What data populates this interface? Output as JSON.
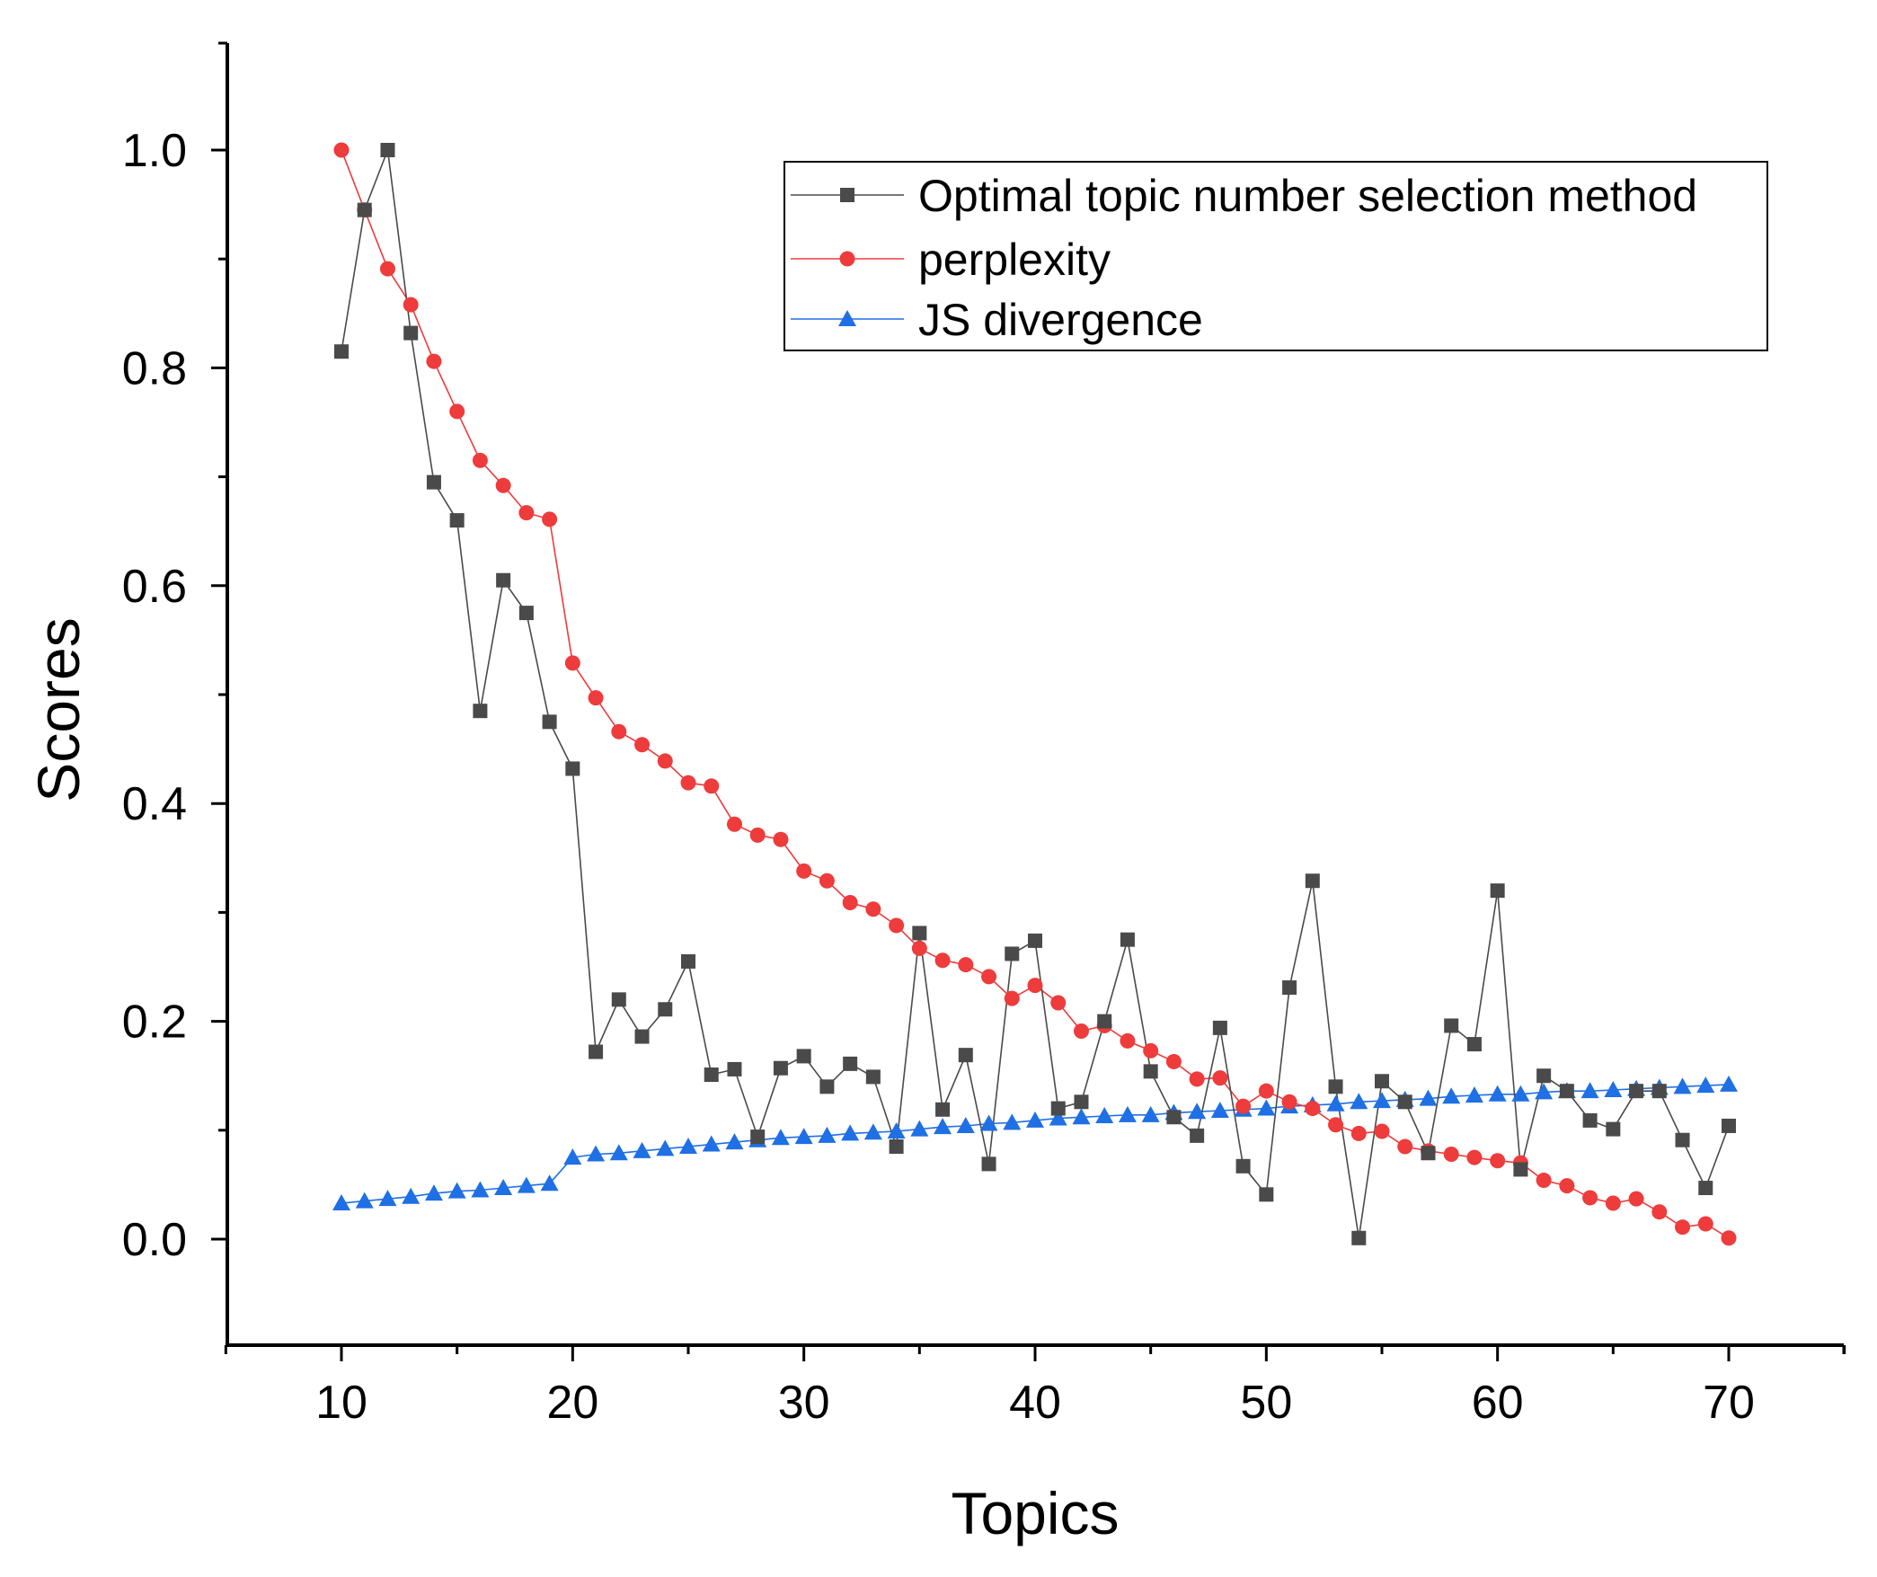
{
  "chart_data": {
    "type": "line",
    "title": "",
    "xlabel": "Topics",
    "ylabel": "Scores",
    "xlim": [
      5,
      75
    ],
    "ylim": [
      -0.1,
      1.1
    ],
    "xticks": [
      "10",
      "20",
      "30",
      "40",
      "50",
      "60",
      "70"
    ],
    "yticks": [
      "0.0",
      "0.2",
      "0.4",
      "0.6",
      "0.8",
      "1.0"
    ],
    "grid": false,
    "legend_position": "top-right",
    "x": [
      10,
      11,
      12,
      13,
      14,
      15,
      16,
      17,
      18,
      19,
      20,
      21,
      22,
      23,
      24,
      25,
      26,
      27,
      28,
      29,
      30,
      31,
      32,
      33,
      34,
      35,
      36,
      37,
      38,
      39,
      40,
      41,
      42,
      43,
      44,
      45,
      46,
      47,
      48,
      49,
      50,
      51,
      52,
      53,
      54,
      55,
      56,
      57,
      58,
      59,
      60,
      61,
      62,
      63,
      64,
      65,
      66,
      67,
      68,
      69,
      70
    ],
    "series": [
      {
        "name": "Optimal topic number selection method",
        "color": "#4a4a4a",
        "marker": "square",
        "values": [
          0.815,
          0.945,
          1.0,
          0.832,
          0.695,
          0.66,
          0.485,
          0.605,
          0.575,
          0.475,
          0.432,
          0.172,
          0.22,
          0.186,
          0.211,
          0.255,
          0.151,
          0.156,
          0.094,
          0.157,
          0.168,
          0.14,
          0.161,
          0.149,
          0.085,
          0.281,
          0.119,
          0.169,
          0.069,
          0.262,
          0.274,
          0.12,
          0.126,
          0.2,
          0.275,
          0.154,
          0.112,
          0.095,
          0.194,
          0.067,
          0.041,
          0.231,
          0.329,
          0.14,
          0.001,
          0.145,
          0.126,
          0.079,
          0.196,
          0.179,
          0.32,
          0.064,
          0.15,
          0.136,
          0.109,
          0.101,
          0.136,
          0.136,
          0.091,
          0.047,
          0.104
        ]
      },
      {
        "name": "perplexity",
        "color": "#ee3b3b",
        "marker": "circle",
        "values": [
          1.0,
          0.945,
          0.891,
          0.858,
          0.806,
          0.76,
          0.715,
          0.692,
          0.667,
          0.661,
          0.529,
          0.497,
          0.466,
          0.454,
          0.439,
          0.419,
          0.416,
          0.381,
          0.371,
          0.367,
          0.338,
          0.329,
          0.309,
          0.303,
          0.288,
          0.267,
          0.256,
          0.252,
          0.241,
          0.221,
          0.233,
          0.217,
          0.191,
          0.196,
          0.182,
          0.173,
          0.163,
          0.147,
          0.148,
          0.122,
          0.136,
          0.126,
          0.12,
          0.105,
          0.097,
          0.099,
          0.085,
          0.081,
          0.078,
          0.075,
          0.072,
          0.07,
          0.054,
          0.049,
          0.038,
          0.033,
          0.037,
          0.025,
          0.011,
          0.014,
          0.001
        ]
      },
      {
        "name": "JS divergence",
        "color": "#1f6fe5",
        "marker": "triangle",
        "values": [
          0.033,
          0.035,
          0.037,
          0.039,
          0.042,
          0.044,
          0.045,
          0.047,
          0.049,
          0.051,
          0.075,
          0.078,
          0.079,
          0.081,
          0.083,
          0.085,
          0.087,
          0.089,
          0.091,
          0.093,
          0.094,
          0.095,
          0.097,
          0.098,
          0.099,
          0.101,
          0.103,
          0.104,
          0.106,
          0.107,
          0.109,
          0.111,
          0.112,
          0.113,
          0.114,
          0.114,
          0.116,
          0.117,
          0.118,
          0.119,
          0.12,
          0.122,
          0.123,
          0.124,
          0.126,
          0.127,
          0.128,
          0.129,
          0.131,
          0.132,
          0.133,
          0.133,
          0.135,
          0.136,
          0.136,
          0.137,
          0.138,
          0.139,
          0.14,
          0.141,
          0.142
        ]
      }
    ]
  }
}
